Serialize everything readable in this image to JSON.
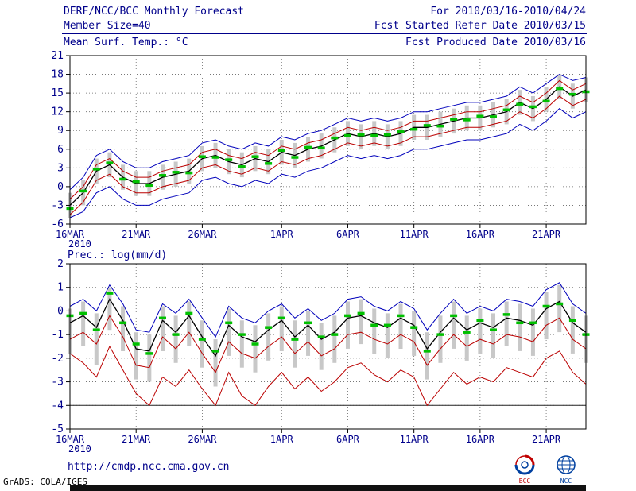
{
  "header": {
    "left": [
      "DERF/NCC/BCC Monthly Forecast",
      "Member Size=40",
      "Mean Surf. Temp.: °C"
    ],
    "right": [
      "For 2010/03/16-2010/04/24",
      "Fcst Started Refer Date 2010/03/15",
      "Fcst Produced Date 2010/03/16"
    ]
  },
  "footer": {
    "link": "http://cmdp.ncc.cma.gov.cn",
    "credit": "GrADS: COLA/IGES",
    "logos": [
      "BCC",
      "NCC"
    ]
  },
  "colors": {
    "text": "#00008b",
    "envelope": "#0000bb",
    "quartile": "#bb0000",
    "mean": "#000000",
    "dash": "#00c000",
    "bars": "#c8c8c8"
  },
  "chart_data": [
    {
      "type": "line",
      "title": "Mean Surf. Temp.: °C",
      "ylabel": "",
      "xlabel": "",
      "ylim": [
        -6,
        21
      ],
      "yticks": [
        -6,
        -3,
        0,
        3,
        6,
        9,
        12,
        15,
        18,
        21
      ],
      "n_days": 40,
      "xtick_days": [
        0,
        5,
        10,
        16,
        21,
        26,
        31,
        36
      ],
      "xtick_labels": [
        "16MAR",
        "21MAR",
        "26MAR",
        "1APR",
        "6APR",
        "11APR",
        "16APR",
        "21APR"
      ],
      "x_year_label": "2010",
      "grid": "dotted",
      "legend": "none",
      "series": [
        {
          "name": "upper-envelope",
          "color": "#0000bb",
          "width": 1,
          "values": [
            -0.5,
            1.5,
            5,
            6,
            4,
            3,
            3,
            4,
            4.5,
            5,
            7,
            7.5,
            6.5,
            6,
            7,
            6.5,
            8,
            7.5,
            8.5,
            9,
            10,
            11,
            10.5,
            11,
            10.5,
            11,
            12,
            12,
            12.5,
            13,
            13.5,
            13.5,
            14,
            14.5,
            16,
            15,
            16.5,
            18,
            17,
            17.5
          ]
        },
        {
          "name": "upper-quartile",
          "color": "#bb0000",
          "width": 1,
          "values": [
            -2,
            0,
            3.5,
            4.5,
            2.5,
            1.5,
            1.5,
            2.5,
            3,
            3.5,
            5.5,
            6,
            5,
            4.5,
            5.5,
            5,
            6.5,
            6,
            7,
            7.5,
            8.5,
            9.5,
            9,
            9.5,
            9,
            9.5,
            10.5,
            10.5,
            11,
            11.5,
            12,
            12,
            12.5,
            13,
            14.5,
            13.5,
            15,
            17,
            15.5,
            16.5
          ]
        },
        {
          "name": "ensemble-mean",
          "color": "#000000",
          "width": 1.3,
          "values": [
            -3,
            -1,
            2.5,
            3.5,
            1.5,
            0.5,
            0.5,
            1.5,
            2,
            2.5,
            4.5,
            5,
            4,
            3.5,
            4.5,
            4,
            5.5,
            5,
            6,
            6.5,
            7.5,
            8.5,
            8,
            8.5,
            8,
            8.5,
            9.5,
            9.5,
            10,
            10.5,
            11,
            11,
            11.5,
            12,
            13.5,
            12.5,
            14,
            16,
            14.5,
            15.5
          ]
        },
        {
          "name": "lower-quartile",
          "color": "#bb0000",
          "width": 1,
          "values": [
            -4.5,
            -2.5,
            1,
            2,
            0,
            -1,
            -1,
            0,
            0.5,
            1,
            3,
            3.5,
            2.5,
            2,
            3,
            2.5,
            4,
            3.5,
            4.5,
            5,
            6,
            7,
            6.5,
            7,
            6.5,
            7,
            8,
            8,
            8.5,
            9,
            9.5,
            9.5,
            10,
            10.5,
            12,
            11,
            12.5,
            14.5,
            13,
            14
          ]
        },
        {
          "name": "lower-envelope",
          "color": "#0000bb",
          "width": 1,
          "values": [
            -5,
            -4,
            -1,
            0,
            -2,
            -3,
            -3,
            -2,
            -1.5,
            -1,
            1,
            1.5,
            0.5,
            0,
            1,
            0.5,
            2,
            1.5,
            2.5,
            3,
            4,
            5,
            4.5,
            5,
            4.5,
            5,
            6,
            6,
            6.5,
            7,
            7.5,
            7.5,
            8,
            8.5,
            10,
            9,
            10.5,
            12.5,
            11,
            12
          ]
        }
      ],
      "dashes": {
        "name": "median",
        "color": "#00c000",
        "values": [
          -3.5,
          -0.7,
          2.8,
          3.8,
          1.2,
          0.8,
          0.2,
          1.8,
          2.3,
          2.2,
          4.8,
          4.7,
          4.3,
          3.2,
          4.8,
          3.7,
          5.8,
          4.7,
          6.3,
          6.2,
          7.8,
          8.2,
          8.3,
          8.2,
          8.3,
          8.8,
          9.2,
          9.8,
          9.7,
          10.8,
          10.7,
          11.3,
          11.2,
          12.3,
          13.2,
          12.8,
          13.7,
          15.7,
          14.8,
          15.2
        ]
      },
      "bars": {
        "color": "#c8c8c8",
        "low": [
          -5,
          -3,
          0.5,
          1.5,
          -0.5,
          -1.5,
          -1.5,
          -0.5,
          0,
          0.5,
          2.5,
          3,
          2,
          1.5,
          2.5,
          2,
          3.5,
          3,
          4,
          4.5,
          5.5,
          6.5,
          6,
          6.5,
          6,
          6.5,
          7.5,
          7.5,
          8,
          8.5,
          9,
          9,
          9.5,
          10,
          11.5,
          10.5,
          12,
          14,
          12.5,
          13.5
        ],
        "high": [
          -1,
          1,
          4.5,
          5.5,
          3.5,
          2.5,
          2.5,
          3.5,
          4,
          4.5,
          6.5,
          7,
          6,
          5.5,
          6.5,
          6,
          7.5,
          7,
          8,
          8.5,
          9.5,
          10.5,
          10,
          10.5,
          10,
          10.5,
          11.5,
          11.5,
          12,
          12.5,
          13,
          13,
          13.5,
          14,
          15.5,
          14.5,
          16,
          18,
          16.5,
          17.5
        ]
      }
    },
    {
      "type": "line",
      "title": "Prec.: log(mm/d)",
      "ylabel": "",
      "xlabel": "",
      "ylim": [
        -5,
        2
      ],
      "yticks": [
        -5,
        -4,
        -3,
        -2,
        -1,
        0,
        1,
        2
      ],
      "n_days": 40,
      "xtick_days": [
        0,
        5,
        10,
        16,
        21,
        26,
        31,
        36
      ],
      "xtick_labels": [
        "16MAR",
        "21MAR",
        "26MAR",
        "1APR",
        "6APR",
        "11APR",
        "16APR",
        "21APR"
      ],
      "x_year_label": "2010",
      "grid": "dotted",
      "legend": "none",
      "baseline": -4,
      "series": [
        {
          "name": "upper-envelope",
          "color": "#0000bb",
          "width": 1,
          "values": [
            0.2,
            0.5,
            0,
            1.1,
            0.3,
            -0.8,
            -0.9,
            0.3,
            -0.1,
            0.5,
            -0.3,
            -1.1,
            0.2,
            -0.3,
            -0.5,
            0,
            0.3,
            -0.3,
            0.1,
            -0.4,
            -0.1,
            0.5,
            0.6,
            0.2,
            0,
            0.4,
            0.1,
            -0.8,
            -0.1,
            0.5,
            -0.1,
            0.2,
            0,
            0.5,
            0.4,
            0.2,
            0.9,
            1.2,
            0.3,
            -0.1
          ]
        },
        {
          "name": "ensemble-mean",
          "color": "#000000",
          "width": 1.3,
          "values": [
            -0.5,
            -0.2,
            -0.7,
            0.5,
            -0.4,
            -1.6,
            -1.7,
            -0.4,
            -0.9,
            -0.2,
            -1.1,
            -1.9,
            -0.6,
            -1.1,
            -1.3,
            -0.8,
            -0.4,
            -1.1,
            -0.6,
            -1.2,
            -0.9,
            -0.3,
            -0.2,
            -0.5,
            -0.7,
            -0.3,
            -0.6,
            -1.6,
            -0.9,
            -0.3,
            -0.8,
            -0.5,
            -0.7,
            -0.3,
            -0.4,
            -0.6,
            0.1,
            0.4,
            -0.5,
            -0.9
          ]
        },
        {
          "name": "lower-quartile",
          "color": "#bb0000",
          "width": 1,
          "values": [
            -1.2,
            -0.9,
            -1.4,
            -0.2,
            -1.1,
            -2.3,
            -2.4,
            -1.1,
            -1.6,
            -0.9,
            -1.8,
            -2.6,
            -1.3,
            -1.8,
            -2,
            -1.5,
            -1.1,
            -1.8,
            -1.3,
            -1.9,
            -1.6,
            -1,
            -0.9,
            -1.2,
            -1.4,
            -1,
            -1.3,
            -2.3,
            -1.6,
            -1,
            -1.5,
            -1.2,
            -1.4,
            -1,
            -1.1,
            -1.3,
            -0.6,
            -0.3,
            -1.2,
            -1.6
          ]
        },
        {
          "name": "lower-envelope",
          "color": "#bb0000",
          "width": 1,
          "values": [
            -1.8,
            -2.2,
            -2.8,
            -1.5,
            -2.5,
            -3.5,
            -4,
            -2.8,
            -3.2,
            -2.5,
            -3.3,
            -4,
            -2.6,
            -3.6,
            -4,
            -3.2,
            -2.6,
            -3.3,
            -2.8,
            -3.4,
            -3,
            -2.4,
            -2.2,
            -2.7,
            -3,
            -2.5,
            -2.8,
            -4,
            -3.3,
            -2.6,
            -3.1,
            -2.8,
            -3,
            -2.4,
            -2.6,
            -2.8,
            -2,
            -1.7,
            -2.6,
            -3.1
          ]
        }
      ],
      "dashes": {
        "name": "median",
        "color": "#00c000",
        "values": [
          -0.2,
          -0.1,
          -0.8,
          0.75,
          -0.5,
          -1.4,
          -1.8,
          -0.3,
          -1,
          -0.1,
          -1.2,
          -1.7,
          -0.5,
          -1,
          -1.4,
          -0.7,
          -0.3,
          -1.2,
          -0.5,
          -1.1,
          -1,
          -0.2,
          -0.1,
          -0.6,
          -0.6,
          -0.2,
          -0.7,
          -1.7,
          -1,
          -0.2,
          -0.9,
          -0.4,
          -0.8,
          -0.15,
          -0.5,
          -0.5,
          0.2,
          0.3,
          -0.4,
          -1
        ]
      },
      "bars": {
        "color": "#c8c8c8",
        "low": [
          -1.8,
          -1.5,
          -2.3,
          -0.8,
          -1.7,
          -2.9,
          -3,
          -1.7,
          -2.2,
          -1.5,
          -2.4,
          -3.2,
          -1.9,
          -2.4,
          -2.6,
          -2.1,
          -1.7,
          -2.4,
          -1.9,
          -2.5,
          -2.2,
          -1.6,
          -1.4,
          -1.8,
          -2,
          -1.6,
          -1.9,
          -2.9,
          -2.2,
          -1.6,
          -2.1,
          -1.8,
          -2,
          -1.5,
          -1.7,
          -1.9,
          -1.2,
          -0.9,
          -1.8,
          -2.2
        ],
        "high": [
          0.1,
          0.4,
          -0.1,
          1,
          0.2,
          -0.9,
          -1,
          0.2,
          -0.2,
          0.4,
          -0.4,
          -1.2,
          0.1,
          -0.4,
          -0.6,
          -0.1,
          0.2,
          -0.4,
          0,
          -0.5,
          -0.2,
          0.4,
          0.5,
          0.1,
          -0.1,
          0.3,
          0,
          -0.9,
          -0.2,
          0.4,
          -0.2,
          0.1,
          -0.1,
          0.4,
          0.3,
          0.1,
          0.8,
          1.1,
          0.2,
          -0.2
        ]
      }
    }
  ]
}
